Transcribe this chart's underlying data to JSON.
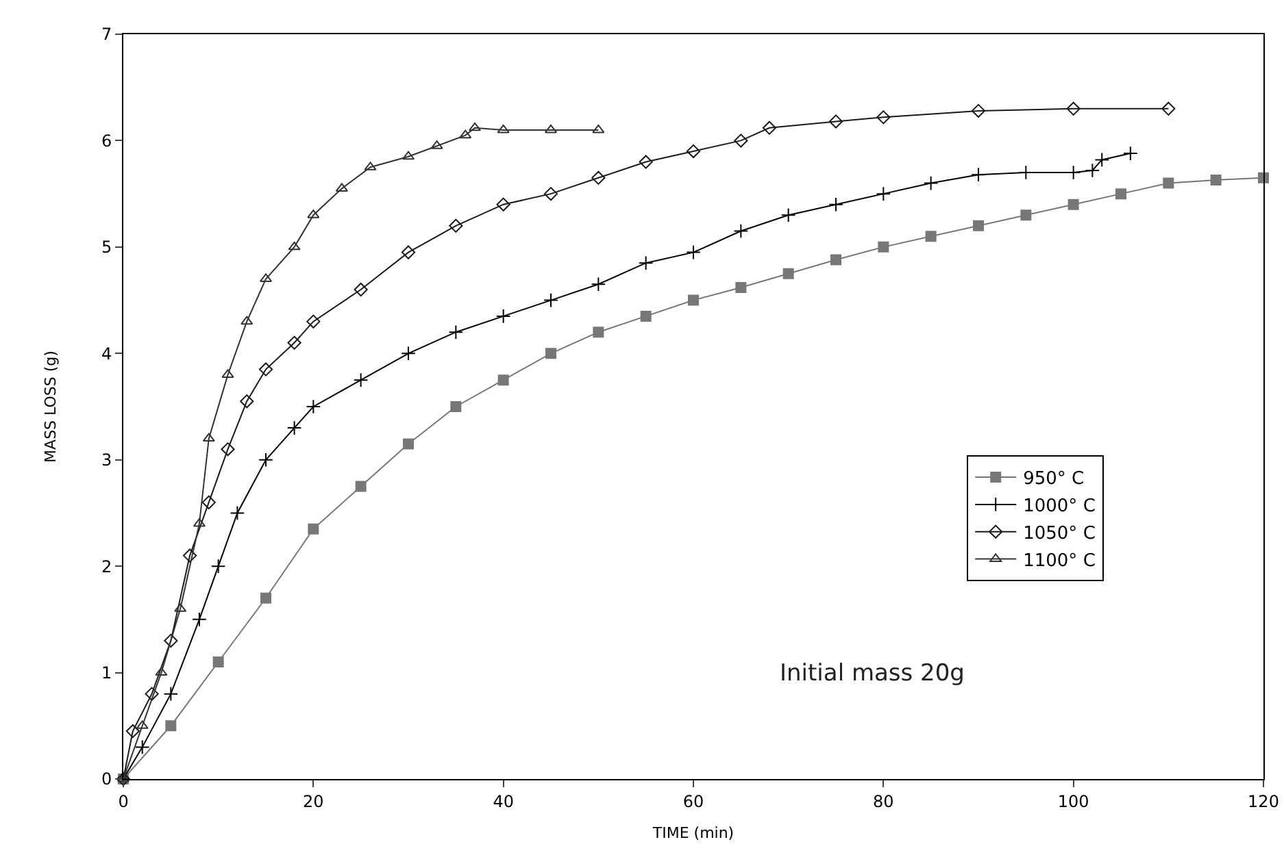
{
  "chart_data": {
    "type": "line",
    "xlabel": "TIME (min)",
    "ylabel": "MASS LOSS (g)",
    "xlim": [
      0,
      120
    ],
    "xticks": [
      0,
      20,
      40,
      60,
      80,
      100,
      120
    ],
    "ylim": [
      0,
      7
    ],
    "yticks": [
      0,
      1,
      2,
      3,
      4,
      5,
      6,
      7
    ],
    "grid": false,
    "legend": "right",
    "annotations": [
      "Initial mass 20g"
    ],
    "series": [
      {
        "name": "950° C",
        "color": "#777777",
        "marker": "square",
        "x": [
          0,
          5,
          10,
          15,
          20,
          25,
          30,
          35,
          40,
          45,
          50,
          55,
          60,
          65,
          70,
          75,
          80,
          85,
          90,
          95,
          100,
          105,
          110,
          115,
          120
        ],
        "values": [
          0,
          0.5,
          1.1,
          1.7,
          2.35,
          2.75,
          3.15,
          3.5,
          3.75,
          4.0,
          4.2,
          4.35,
          4.5,
          4.62,
          4.75,
          4.88,
          5.0,
          5.1,
          5.2,
          5.3,
          5.4,
          5.5,
          5.6,
          5.63,
          5.65
        ]
      },
      {
        "name": "1000° C",
        "color": "#000000",
        "marker": "cross",
        "x": [
          0,
          2,
          5,
          8,
          10,
          12,
          15,
          18,
          20,
          25,
          30,
          35,
          40,
          45,
          50,
          55,
          60,
          65,
          70,
          75,
          80,
          85,
          90,
          95,
          100,
          102,
          103,
          106
        ],
        "values": [
          0,
          0.3,
          0.8,
          1.5,
          2.0,
          2.5,
          3.0,
          3.3,
          3.5,
          3.75,
          4.0,
          4.2,
          4.35,
          4.5,
          4.65,
          4.85,
          4.95,
          5.15,
          5.3,
          5.4,
          5.5,
          5.6,
          5.68,
          5.7,
          5.7,
          5.72,
          5.82,
          5.88
        ]
      },
      {
        "name": "1050° C",
        "color": "#1a1a1a",
        "marker": "diamond",
        "x": [
          0,
          1,
          3,
          5,
          7,
          9,
          11,
          13,
          15,
          18,
          20,
          25,
          30,
          35,
          40,
          45,
          50,
          55,
          60,
          65,
          68,
          75,
          80,
          90,
          100,
          110
        ],
        "values": [
          0,
          0.45,
          0.8,
          1.3,
          2.1,
          2.6,
          3.1,
          3.55,
          3.85,
          4.1,
          4.3,
          4.6,
          4.95,
          5.2,
          5.4,
          5.5,
          5.65,
          5.8,
          5.9,
          6.0,
          6.12,
          6.18,
          6.22,
          6.28,
          6.3,
          6.3
        ]
      },
      {
        "name": "1100° C",
        "color": "#333333",
        "marker": "triangle",
        "x": [
          0,
          2,
          4,
          6,
          8,
          9,
          11,
          13,
          15,
          18,
          20,
          23,
          26,
          30,
          33,
          36,
          37,
          40,
          45,
          50
        ],
        "values": [
          0,
          0.5,
          1.0,
          1.6,
          2.4,
          3.2,
          3.8,
          4.3,
          4.7,
          5.0,
          5.3,
          5.55,
          5.75,
          5.85,
          5.95,
          6.05,
          6.12,
          6.1,
          6.1,
          6.1
        ]
      }
    ]
  }
}
